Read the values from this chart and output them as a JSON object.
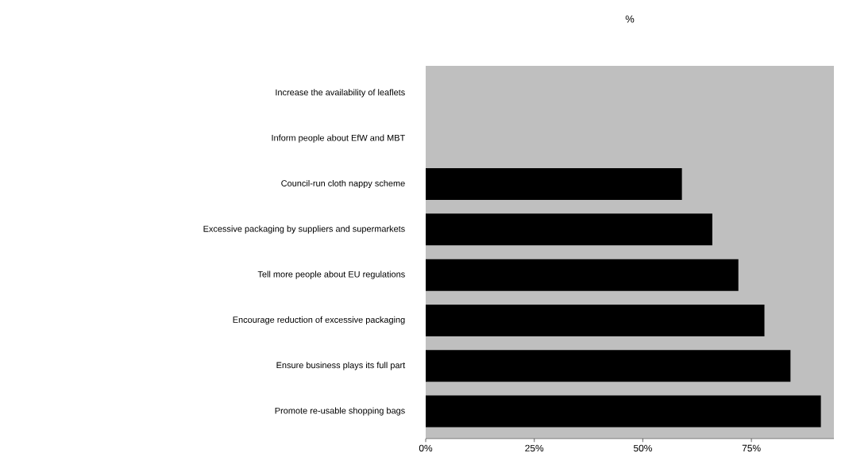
{
  "chart_data": {
    "type": "bar",
    "orientation": "horizontal",
    "title": "%",
    "categories": [
      "Increase the availability of leaflets",
      "Inform people about  EfW and MBT",
      "Council-run cloth nappy scheme",
      "Excessive  packaging  by suppliers and supermarkets",
      "Tell  more people about  EU regulations",
      "Encourage reduction of  excessive  packaging",
      "Ensure business plays its full part",
      "Promote re-usable shopping bags"
    ],
    "values": [
      null,
      null,
      59,
      66,
      72,
      78,
      84,
      91
    ],
    "color": "#000000",
    "xlim": [
      0,
      94
    ],
    "xticks": [
      {
        "value": 0,
        "label": "0%"
      },
      {
        "value": 25,
        "label": "25%"
      },
      {
        "value": 50,
        "label": "50%"
      },
      {
        "value": 75,
        "label": "75%"
      }
    ],
    "grid": false
  }
}
